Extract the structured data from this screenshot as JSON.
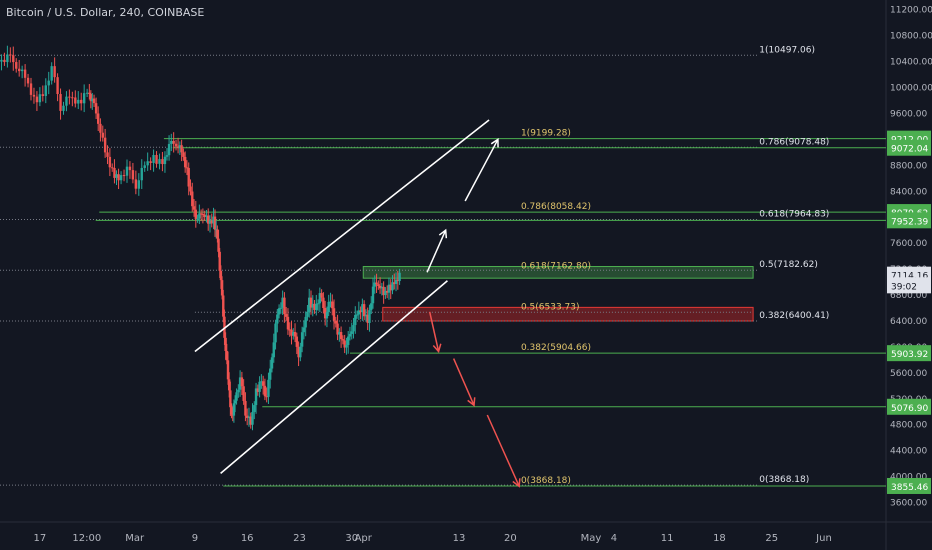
{
  "header": {
    "title": "Bitcoin / U.S. Dollar, 240, COINBASE"
  },
  "colors": {
    "background": "#131722",
    "up": "#26a69a",
    "down": "#ef5350",
    "green_line": "#4caf50",
    "dotted": "#787b86",
    "fib_text": "#e0c46c",
    "white": "#ffffff",
    "label_green": "#4caf50",
    "label_white": "#e0e3eb"
  },
  "chart_data": {
    "type": "candlestick",
    "ylim": [
      3300,
      11350
    ],
    "y_ticks": [
      3600,
      4000,
      4400,
      4800,
      5200,
      5600,
      6000,
      6400,
      6800,
      7200,
      7600,
      8000,
      8400,
      8800,
      9200,
      9600,
      10000,
      10400,
      10800,
      11200
    ],
    "y_tick_labels": [
      "3600.00",
      "4000.00",
      "4400.00",
      "4800.00",
      "5200.00",
      "5600.00",
      "6000.00",
      "6400.00",
      "6800.00",
      "7200.00",
      "7600.00",
      "8000.00",
      "8400.00",
      "8800.00",
      "9200.00",
      "9600.00",
      "10000.00",
      "10400.00",
      "10800.00",
      "11200.00"
    ],
    "x_labels": [
      {
        "label": "17",
        "pos": 0.045
      },
      {
        "label": "12:00",
        "pos": 0.098
      },
      {
        "label": "Mar",
        "pos": 0.152
      },
      {
        "label": "9",
        "pos": 0.22
      },
      {
        "label": "16",
        "pos": 0.279
      },
      {
        "label": "23",
        "pos": 0.338
      },
      {
        "label": "30",
        "pos": 0.397
      },
      {
        "label": "Apr",
        "pos": 0.41
      },
      {
        "label": "13",
        "pos": 0.518
      },
      {
        "label": "20",
        "pos": 0.576
      },
      {
        "label": "May",
        "pos": 0.667
      },
      {
        "label": "4",
        "pos": 0.693
      },
      {
        "label": "11",
        "pos": 0.753
      },
      {
        "label": "18",
        "pos": 0.812
      },
      {
        "label": "25",
        "pos": 0.871
      },
      {
        "label": "Jun",
        "pos": 0.93
      }
    ],
    "price_path": [
      [
        0.0,
        10400
      ],
      [
        0.01,
        10480
      ],
      [
        0.02,
        10350
      ],
      [
        0.03,
        10150
      ],
      [
        0.04,
        9800
      ],
      [
        0.05,
        9900
      ],
      [
        0.06,
        10300
      ],
      [
        0.07,
        9700
      ],
      [
        0.08,
        9850
      ],
      [
        0.09,
        9750
      ],
      [
        0.1,
        9950
      ],
      [
        0.105,
        9800
      ],
      [
        0.112,
        9500
      ],
      [
        0.12,
        9000
      ],
      [
        0.128,
        8700
      ],
      [
        0.135,
        8600
      ],
      [
        0.145,
        8750
      ],
      [
        0.155,
        8500
      ],
      [
        0.165,
        8800
      ],
      [
        0.175,
        8900
      ],
      [
        0.185,
        8850
      ],
      [
        0.192,
        9100
      ],
      [
        0.2,
        9150
      ],
      [
        0.206,
        9000
      ],
      [
        0.212,
        8700
      ],
      [
        0.218,
        8200
      ],
      [
        0.224,
        7950
      ],
      [
        0.23,
        8100
      ],
      [
        0.236,
        7900
      ],
      [
        0.242,
        7950
      ],
      [
        0.246,
        7700
      ],
      [
        0.25,
        7000
      ],
      [
        0.254,
        6200
      ],
      [
        0.258,
        5500
      ],
      [
        0.262,
        4900
      ],
      [
        0.266,
        5200
      ],
      [
        0.272,
        5500
      ],
      [
        0.278,
        5000
      ],
      [
        0.284,
        4800
      ],
      [
        0.29,
        5300
      ],
      [
        0.296,
        5500
      ],
      [
        0.302,
        5200
      ],
      [
        0.308,
        5900
      ],
      [
        0.314,
        6500
      ],
      [
        0.32,
        6700
      ],
      [
        0.326,
        6300
      ],
      [
        0.332,
        6200
      ],
      [
        0.338,
        5900
      ],
      [
        0.344,
        6300
      ],
      [
        0.35,
        6700
      ],
      [
        0.356,
        6600
      ],
      [
        0.362,
        6800
      ],
      [
        0.368,
        6500
      ],
      [
        0.374,
        6700
      ],
      [
        0.38,
        6300
      ],
      [
        0.386,
        6150
      ],
      [
        0.392,
        6000
      ],
      [
        0.398,
        6300
      ],
      [
        0.404,
        6500
      ],
      [
        0.41,
        6600
      ],
      [
        0.416,
        6400
      ],
      [
        0.422,
        6900
      ],
      [
        0.428,
        7000
      ],
      [
        0.434,
        6800
      ],
      [
        0.44,
        6900
      ],
      [
        0.446,
        7000
      ],
      [
        0.452,
        7114
      ]
    ],
    "channel": {
      "upper": [
        [
          0.22,
          5930
        ],
        [
          0.552,
          9500
        ]
      ],
      "lower": [
        [
          0.249,
          4050
        ],
        [
          0.505,
          7020
        ]
      ]
    },
    "horizontal_lines": [
      {
        "y": 10497.06,
        "x0": 0.0,
        "x1": 0.855,
        "style": "dotted",
        "color": "dotted",
        "label": "1(10497.06)",
        "label_x": 0.857,
        "label_color": "label_white"
      },
      {
        "y": 9212.0,
        "x0": 0.185,
        "x1": 1.0,
        "style": "solid",
        "color": "green_line",
        "label": "1(9199.28)",
        "label_x": 0.588,
        "label_color": "fib_text"
      },
      {
        "y": 9078.48,
        "x0": 0.0,
        "x1": 0.855,
        "style": "dotted",
        "color": "dotted",
        "label": "0.786(9078.48)",
        "label_x": 0.857,
        "label_color": "label_white"
      },
      {
        "y": 9072.04,
        "x0": 0.195,
        "x1": 1.0,
        "style": "solid",
        "color": "green_line"
      },
      {
        "y": 8079.62,
        "x0": 0.112,
        "x1": 1.0,
        "style": "solid",
        "color": "green_line",
        "label": "0.786(8058.42)",
        "label_x": 0.588,
        "label_color": "fib_text"
      },
      {
        "y": 7964.83,
        "x0": 0.0,
        "x1": 0.855,
        "style": "dotted",
        "color": "dotted",
        "label": "0.618(7964.83)",
        "label_x": 0.857,
        "label_color": "label_white"
      },
      {
        "y": 7952.39,
        "x0": 0.108,
        "x1": 1.0,
        "style": "solid",
        "color": "green_line"
      },
      {
        "y": 7182.62,
        "x0": 0.0,
        "x1": 0.855,
        "style": "dotted",
        "color": "dotted",
        "label": "0.5(7182.62)",
        "label_x": 0.857,
        "label_color": "label_white"
      },
      {
        "y": 7162.8,
        "x0": 0.41,
        "x1": 0.85,
        "style": "none",
        "label": "0.618(7162.80)",
        "label_x": 0.588,
        "label_color": "fib_text"
      },
      {
        "y": 6533.73,
        "x0": 0.22,
        "x1": 0.85,
        "style": "dotted",
        "color": "dotted",
        "label": "0.5(6533.73)",
        "label_x": 0.588,
        "label_color": "fib_text"
      },
      {
        "y": 6400.41,
        "x0": 0.0,
        "x1": 0.855,
        "style": "dotted",
        "color": "dotted",
        "label": "0.382(6400.41)",
        "label_x": 0.857,
        "label_color": "label_white"
      },
      {
        "y": 5904.66,
        "x0": 0.22,
        "x1": 0.85,
        "style": "none",
        "label": "0.382(5904.66)",
        "label_x": 0.588,
        "label_color": "fib_text"
      },
      {
        "y": 5903.92,
        "x0": 0.395,
        "x1": 1.0,
        "style": "solid",
        "color": "green_line"
      },
      {
        "y": 5076.9,
        "x0": 0.296,
        "x1": 1.0,
        "style": "solid",
        "color": "green_line"
      },
      {
        "y": 3868.18,
        "x0": 0.0,
        "x1": 0.855,
        "style": "dotted",
        "color": "dotted",
        "label": "0(3868.18)",
        "label_x": 0.857,
        "label_color": "label_white"
      },
      {
        "y": 3855.46,
        "x0": 0.252,
        "x1": 1.0,
        "style": "solid",
        "color": "green_line",
        "label": "0(3868.18)",
        "label_x": 0.588,
        "label_color": "fib_text"
      }
    ],
    "zones": [
      {
        "x0": 0.41,
        "x1": 0.85,
        "y0": 7060,
        "y1": 7240,
        "fill": "rgba(76,175,80,0.35)",
        "stroke": "#4caf50"
      },
      {
        "x0": 0.432,
        "x1": 0.85,
        "y0": 6400,
        "y1": 6610,
        "fill": "rgba(200,40,40,0.45)",
        "stroke": "#e53935"
      }
    ],
    "arrows": [
      {
        "from": [
          0.482,
          7150
        ],
        "to": [
          0.503,
          7800
        ],
        "color": "white"
      },
      {
        "from": [
          0.525,
          8250
        ],
        "to": [
          0.562,
          9200
        ],
        "color": "white"
      },
      {
        "from": [
          0.485,
          6540
        ],
        "to": [
          0.495,
          5930
        ],
        "color": "down"
      },
      {
        "from": [
          0.512,
          5820
        ],
        "to": [
          0.535,
          5100
        ],
        "color": "down"
      },
      {
        "from": [
          0.55,
          4950
        ],
        "to": [
          0.586,
          3850
        ],
        "color": "down"
      }
    ],
    "axis_labels": [
      {
        "text": "9212.00",
        "y": 9212.0,
        "bg": "#4caf50",
        "fg": "#ffffff"
      },
      {
        "text": "9072.04",
        "y": 9072.04,
        "bg": "#4caf50",
        "fg": "#ffffff"
      },
      {
        "text": "8079.62",
        "y": 8079.62,
        "bg": "#4caf50",
        "fg": "#ffffff"
      },
      {
        "text": "7952.39",
        "y": 7952.39,
        "bg": "#4caf50",
        "fg": "#ffffff"
      },
      {
        "text": "7114.16",
        "y": 7114.16,
        "bg": "#e0e3eb",
        "fg": "#131722"
      },
      {
        "text": "39:02",
        "y": 6950,
        "bg": "#e0e3eb",
        "fg": "#131722"
      },
      {
        "text": "5903.92",
        "y": 5903.92,
        "bg": "#4caf50",
        "fg": "#ffffff"
      },
      {
        "text": "5076.90",
        "y": 5076.9,
        "bg": "#4caf50",
        "fg": "#ffffff"
      },
      {
        "text": "3855.46",
        "y": 3855.46,
        "bg": "#4caf50",
        "fg": "#ffffff"
      }
    ]
  }
}
